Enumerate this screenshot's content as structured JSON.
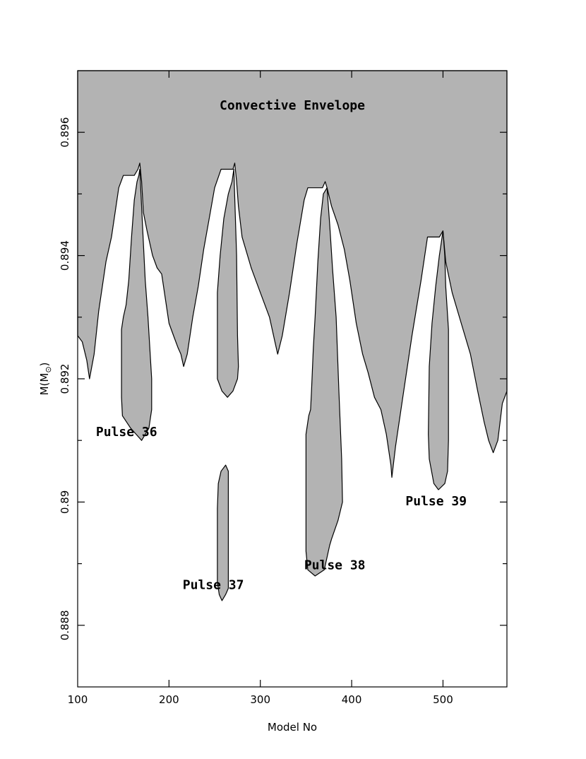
{
  "chart_data": {
    "type": "area",
    "title": "",
    "xlabel": "Model No",
    "ylabel_main": "M(M",
    "ylabel_sub": "⊙",
    "ylabel_close": ")",
    "xlim": [
      100,
      570
    ],
    "ylim": [
      0.887,
      0.897
    ],
    "x_ticks": [
      {
        "value": 100,
        "label": "100"
      },
      {
        "value": 200,
        "label": "200"
      },
      {
        "value": 300,
        "label": "300"
      },
      {
        "value": 400,
        "label": "400"
      },
      {
        "value": 500,
        "label": "500"
      }
    ],
    "y_ticks": [
      {
        "value": 0.888,
        "label": "0.888"
      },
      {
        "value": 0.89,
        "label": "0.89"
      },
      {
        "value": 0.892,
        "label": "0.892"
      },
      {
        "value": 0.894,
        "label": "0.894"
      },
      {
        "value": 0.896,
        "label": "0.896"
      }
    ],
    "y_minor_ticks": [
      0.889,
      0.891,
      0.893,
      0.895
    ],
    "fill_color": "#b3b3b3",
    "regions": [
      {
        "name": "Convective Envelope",
        "boundary": [
          [
            100,
            0.8927
          ],
          [
            105,
            0.8926
          ],
          [
            110,
            0.8923
          ],
          [
            113,
            0.892
          ],
          [
            118,
            0.8924
          ],
          [
            123,
            0.8931
          ],
          [
            131,
            0.8939
          ],
          [
            137,
            0.8943
          ],
          [
            145,
            0.8951
          ],
          [
            150,
            0.8953
          ],
          [
            162,
            0.8953
          ],
          [
            166,
            0.8954
          ],
          [
            168,
            0.8955
          ],
          [
            170,
            0.8952
          ],
          [
            172,
            0.8947
          ],
          [
            176,
            0.8944
          ],
          [
            182,
            0.894
          ],
          [
            187,
            0.8938
          ],
          [
            192,
            0.8937
          ],
          [
            197,
            0.8932
          ],
          [
            200,
            0.8929
          ],
          [
            205,
            0.8927
          ],
          [
            210,
            0.8925
          ],
          [
            213,
            0.8924
          ],
          [
            216,
            0.8922
          ],
          [
            220,
            0.8924
          ],
          [
            226,
            0.893
          ],
          [
            232,
            0.8935
          ],
          [
            238,
            0.8941
          ],
          [
            244,
            0.8946
          ],
          [
            250,
            0.8951
          ],
          [
            257,
            0.8954
          ],
          [
            266,
            0.8954
          ],
          [
            270,
            0.8954
          ],
          [
            272,
            0.8955
          ],
          [
            274,
            0.8952
          ],
          [
            276,
            0.8948
          ],
          [
            280,
            0.8943
          ],
          [
            290,
            0.8938
          ],
          [
            300,
            0.8934
          ],
          [
            310,
            0.893
          ],
          [
            316,
            0.8926
          ],
          [
            319,
            0.8924
          ],
          [
            324,
            0.8927
          ],
          [
            332,
            0.8934
          ],
          [
            340,
            0.8942
          ],
          [
            348,
            0.8949
          ],
          [
            352,
            0.8951
          ],
          [
            368,
            0.8951
          ],
          [
            371,
            0.8952
          ],
          [
            373,
            0.8951
          ],
          [
            378,
            0.8948
          ],
          [
            385,
            0.8945
          ],
          [
            392,
            0.8941
          ],
          [
            398,
            0.8936
          ],
          [
            405,
            0.8929
          ],
          [
            412,
            0.8924
          ],
          [
            418,
            0.8921
          ],
          [
            425,
            0.8917
          ],
          [
            432,
            0.8915
          ],
          [
            438,
            0.8911
          ],
          [
            443,
            0.8906
          ],
          [
            444,
            0.8904
          ],
          [
            448,
            0.8909
          ],
          [
            456,
            0.8917
          ],
          [
            466,
            0.8927
          ],
          [
            476,
            0.8936
          ],
          [
            483,
            0.8943
          ],
          [
            496,
            0.8943
          ],
          [
            500,
            0.8944
          ],
          [
            503,
            0.8939
          ],
          [
            510,
            0.8934
          ],
          [
            520,
            0.8929
          ],
          [
            530,
            0.8924
          ],
          [
            538,
            0.8918
          ],
          [
            545,
            0.8913
          ],
          [
            550,
            0.891
          ],
          [
            555,
            0.8908
          ],
          [
            560,
            0.891
          ],
          [
            565,
            0.8916
          ],
          [
            570,
            0.8918
          ]
        ]
      },
      {
        "name": "Pulse 36",
        "boundary": [
          [
            168,
            0.8954
          ],
          [
            171,
            0.8945
          ],
          [
            174,
            0.8936
          ],
          [
            177,
            0.893
          ],
          [
            181,
            0.892
          ],
          [
            181,
            0.8915
          ],
          [
            178,
            0.8912
          ],
          [
            170,
            0.891
          ],
          [
            164,
            0.8911
          ],
          [
            158,
            0.8912
          ],
          [
            149,
            0.8914
          ],
          [
            148,
            0.8917
          ],
          [
            148,
            0.8925
          ],
          [
            148,
            0.8928
          ],
          [
            150,
            0.893
          ],
          [
            153,
            0.8932
          ],
          [
            156,
            0.8936
          ],
          [
            159,
            0.8943
          ],
          [
            162,
            0.8949
          ],
          [
            165,
            0.8952
          ],
          [
            167,
            0.8953
          ]
        ]
      },
      {
        "name": "Pulse 37",
        "boundary": [
          [
            271,
            0.8954
          ],
          [
            274,
            0.894
          ],
          [
            275,
            0.8927
          ],
          [
            276,
            0.8922
          ],
          [
            275,
            0.892
          ],
          [
            270,
            0.8918
          ],
          [
            264,
            0.8917
          ],
          [
            258,
            0.8918
          ],
          [
            253,
            0.892
          ],
          [
            253,
            0.8928
          ],
          [
            253,
            0.8934
          ],
          [
            256,
            0.894
          ],
          [
            260,
            0.8946
          ],
          [
            265,
            0.895
          ],
          [
            269,
            0.8952
          ]
        ]
      },
      {
        "name": "Pulse 37 lower",
        "boundary": [
          [
            253,
            0.8899
          ],
          [
            253,
            0.8887
          ],
          [
            255,
            0.8885
          ],
          [
            258,
            0.8884
          ],
          [
            262,
            0.8885
          ],
          [
            265,
            0.8886
          ],
          [
            265,
            0.8899
          ],
          [
            265,
            0.8905
          ],
          [
            262,
            0.8906
          ],
          [
            257,
            0.8905
          ],
          [
            254,
            0.8903
          ]
        ]
      },
      {
        "name": "Pulse 38",
        "boundary": [
          [
            373,
            0.8951
          ],
          [
            376,
            0.8945
          ],
          [
            379,
            0.8938
          ],
          [
            383,
            0.893
          ],
          [
            386,
            0.8918
          ],
          [
            389,
            0.8907
          ],
          [
            390,
            0.89
          ],
          [
            385,
            0.8897
          ],
          [
            378,
            0.8894
          ],
          [
            376,
            0.8893
          ],
          [
            370,
            0.8889
          ],
          [
            360,
            0.8888
          ],
          [
            352,
            0.8889
          ],
          [
            350,
            0.8892
          ],
          [
            350,
            0.8905
          ],
          [
            350,
            0.8911
          ],
          [
            353,
            0.8914
          ],
          [
            355,
            0.8915
          ],
          [
            356,
            0.8918
          ],
          [
            358,
            0.8925
          ],
          [
            360,
            0.893
          ],
          [
            363,
            0.8939
          ],
          [
            366,
            0.8946
          ],
          [
            369,
            0.895
          ]
        ]
      },
      {
        "name": "Pulse 39",
        "boundary": [
          [
            500,
            0.8944
          ],
          [
            502,
            0.894
          ],
          [
            503,
            0.8935
          ],
          [
            506,
            0.8928
          ],
          [
            506,
            0.891
          ],
          [
            505,
            0.8905
          ],
          [
            502,
            0.8903
          ],
          [
            495,
            0.8902
          ],
          [
            490,
            0.8903
          ],
          [
            485,
            0.8907
          ],
          [
            484,
            0.8911
          ],
          [
            485,
            0.8922
          ],
          [
            488,
            0.8929
          ],
          [
            492,
            0.8935
          ],
          [
            496,
            0.894
          ],
          [
            498,
            0.8942
          ]
        ]
      }
    ],
    "annotations": [
      {
        "text": "Convective Envelope",
        "x": 335,
        "y": 0.89637,
        "anchor": "middle"
      },
      {
        "text": "Pulse 36",
        "x": 120,
        "y": 0.89107,
        "anchor": "start"
      },
      {
        "text": "Pulse 37",
        "x": 215,
        "y": 0.88859,
        "anchor": "start"
      },
      {
        "text": "Pulse 38",
        "x": 348,
        "y": 0.88891,
        "anchor": "start"
      },
      {
        "text": "Pulse 39",
        "x": 459,
        "y": 0.88995,
        "anchor": "start"
      }
    ]
  }
}
